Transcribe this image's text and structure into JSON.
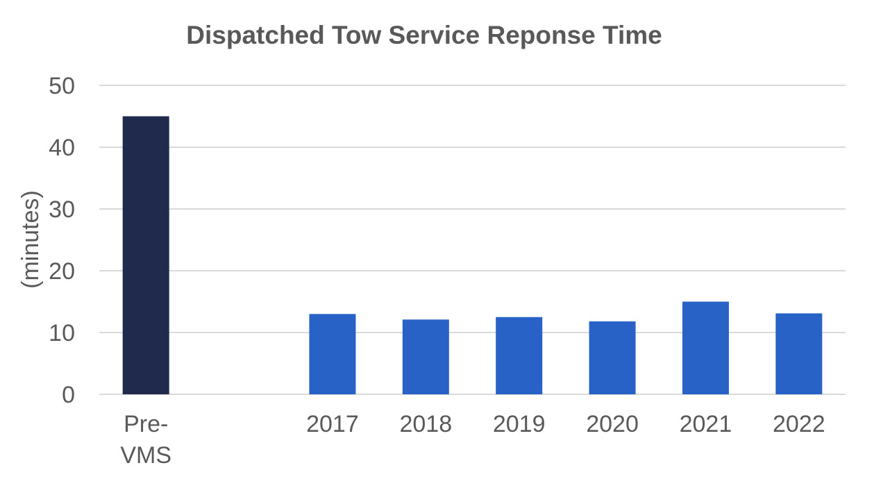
{
  "chart_data": {
    "type": "bar",
    "title": "Dispatched Tow Service Reponse Time",
    "xlabel": "",
    "ylabel": "(minutes)",
    "categories": [
      [
        "Pre-",
        "VMS"
      ],
      [
        ""
      ],
      [
        "2017"
      ],
      [
        "2018"
      ],
      [
        "2019"
      ],
      [
        "2020"
      ],
      [
        "2021"
      ],
      [
        "2022"
      ]
    ],
    "values": [
      45,
      null,
      13,
      12.1,
      12.5,
      11.8,
      15,
      13.1
    ],
    "ylim": [
      0,
      50
    ],
    "yticks": [
      "0",
      "10",
      "20",
      "30",
      "40",
      "50"
    ],
    "grid": true,
    "legend": "none",
    "colors": {
      "highlight": "#1f2a4c",
      "bar": "#2862c7",
      "grid": "#d9d9d9",
      "text": "#595959"
    }
  }
}
